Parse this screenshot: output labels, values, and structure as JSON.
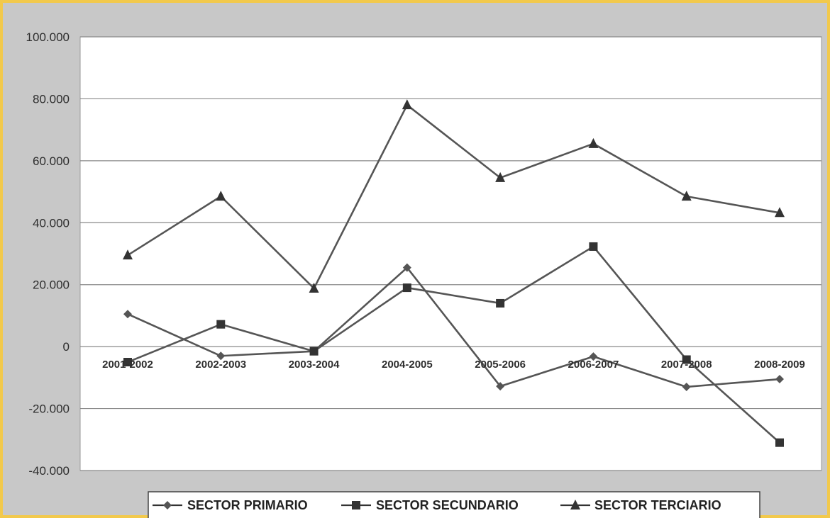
{
  "chart_data": {
    "type": "line",
    "title": "",
    "xlabel": "",
    "ylabel": "",
    "categories": [
      "2001-2002",
      "2002-2003",
      "2003-2004",
      "2004-2005",
      "2005-2006",
      "2006-2007",
      "2007-2008",
      "2008-2009"
    ],
    "y_ticks": [
      "100.000",
      "80.000",
      "60.000",
      "40.000",
      "20.000",
      "0",
      "-20.000",
      "-40.000"
    ],
    "ylim": [
      -40000,
      100000
    ],
    "grid": true,
    "legend_position": "bottom",
    "series": [
      {
        "name": "SECTOR PRIMARIO",
        "marker": "diamond",
        "color": "#444444",
        "values": [
          10500,
          -3000,
          -1500,
          25500,
          -12800,
          -3200,
          -13000,
          -10500
        ]
      },
      {
        "name": "SECTOR SECUNDARIO",
        "marker": "square",
        "color": "#444444",
        "values": [
          -5000,
          7200,
          -1500,
          19000,
          14000,
          32300,
          -4200,
          -31000
        ]
      },
      {
        "name": "SECTOR TERCIARIO",
        "marker": "triangle",
        "color": "#444444",
        "values": [
          29500,
          48500,
          18800,
          78000,
          54500,
          65500,
          48500,
          43200
        ]
      }
    ]
  }
}
